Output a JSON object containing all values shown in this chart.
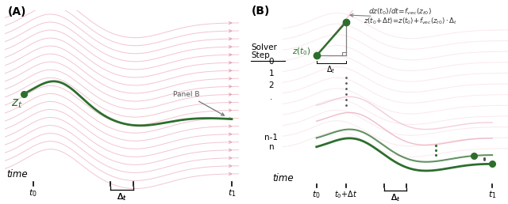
{
  "bg_color": "#ffffff",
  "pink_color": "#e8a0b0",
  "pink_light": "#f0c0cc",
  "pink_lighter": "#f5d5dc",
  "green_dark": "#2d6e2d",
  "gray_col": "#888888",
  "panel_a_label": "(A)",
  "panel_b_label": "(B)",
  "time_label": "time",
  "zt_label": "$z_t$"
}
